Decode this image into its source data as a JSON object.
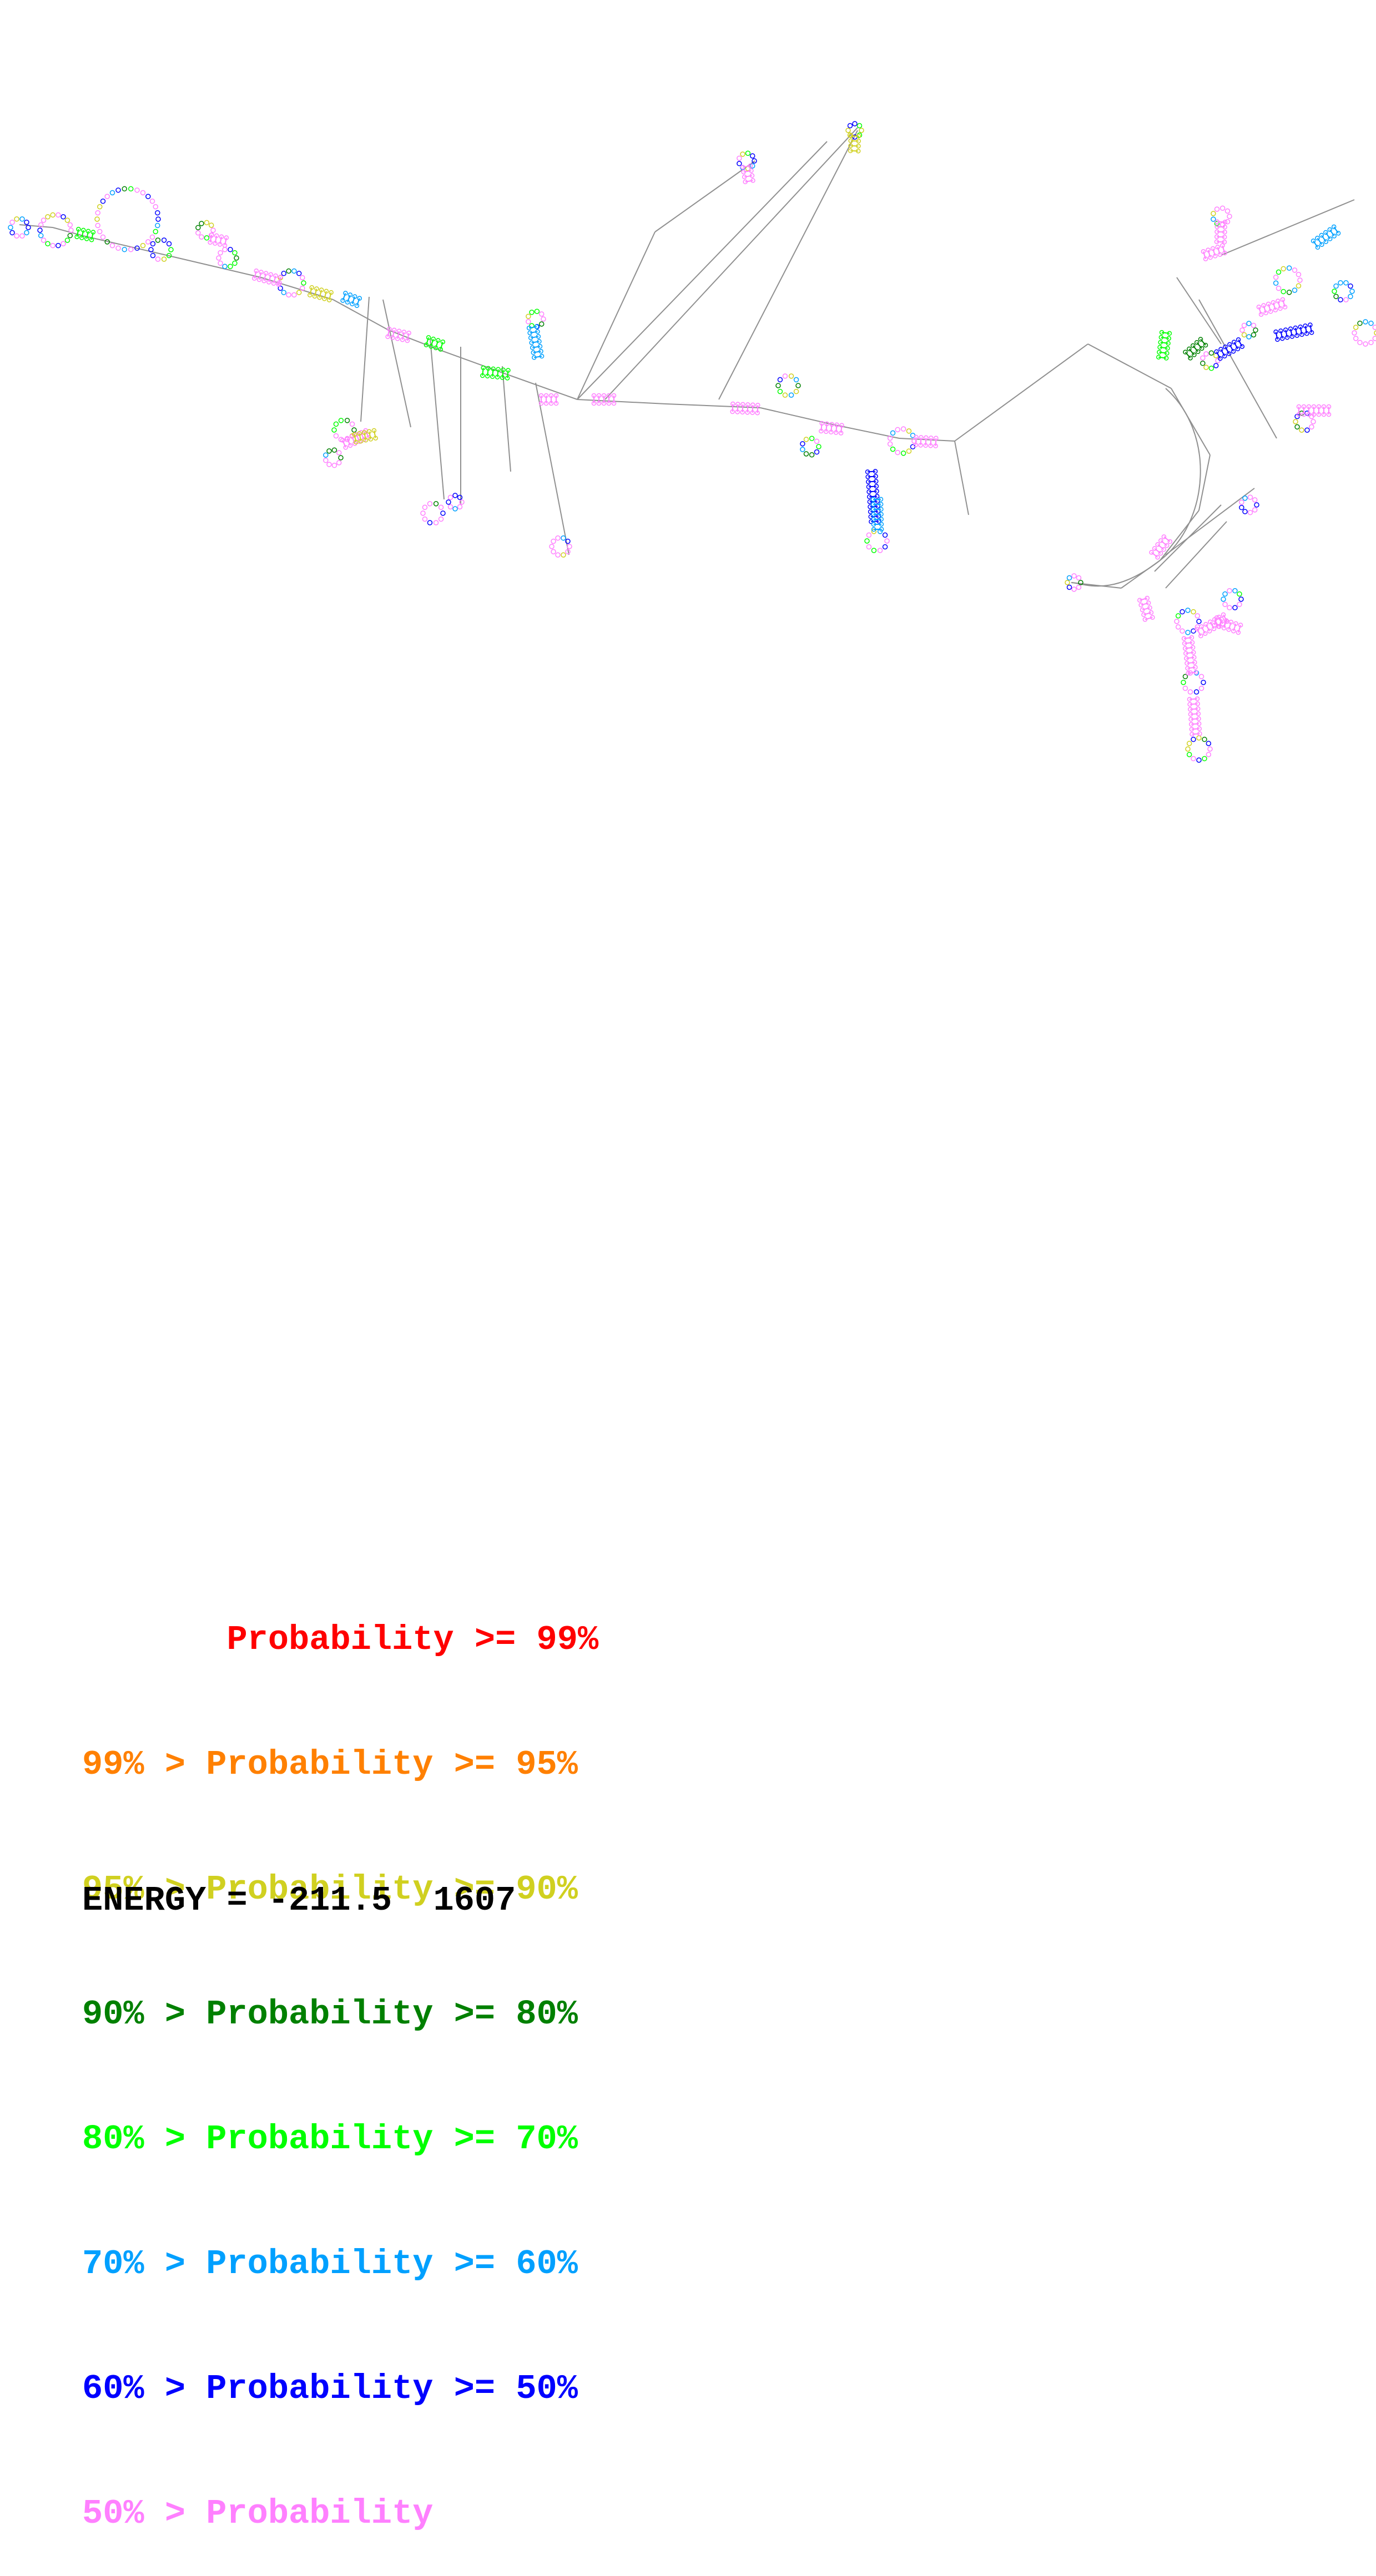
{
  "legend": {
    "rows": [
      {
        "text": "       Probability >= 99%",
        "color": "#ff0000"
      },
      {
        "text": "99% > Probability >= 95%",
        "color": "#ff8000"
      },
      {
        "text": "95% > Probability >= 90%",
        "color": "#d0d020"
      },
      {
        "text": "90% > Probability >= 80%",
        "color": "#008000"
      },
      {
        "text": "80% > Probability >= 70%",
        "color": "#00ff00"
      },
      {
        "text": "70% > Probability >= 60%",
        "color": "#00a0ff"
      },
      {
        "text": "60% > Probability >= 50%",
        "color": "#0000ff"
      },
      {
        "text": "50% > Probability",
        "color": "#ff80ff"
      }
    ]
  },
  "energy_label": "ENERGY = -211.5  1607",
  "structure_colors": {
    "backbone": "#909090",
    "low": "#ff80ff",
    "p50": "#0000ff",
    "p60": "#00a0ff",
    "p70": "#00ff00",
    "p80": "#008000",
    "p90": "#d0d020"
  }
}
